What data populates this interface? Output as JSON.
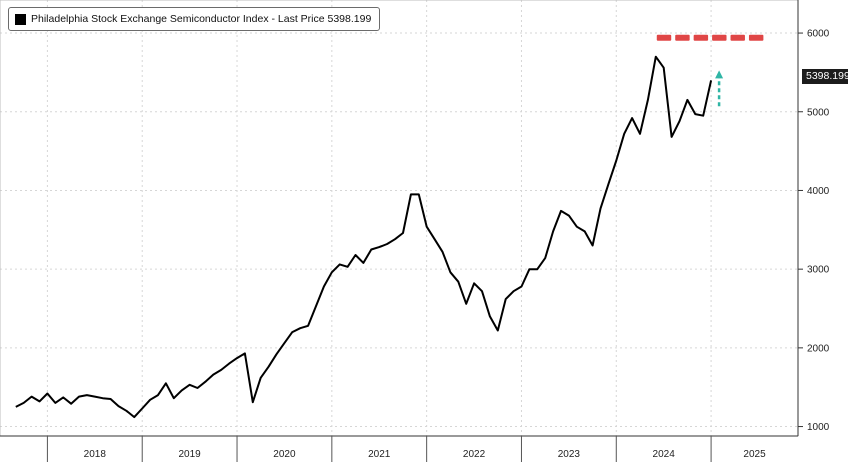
{
  "chart_data": {
    "type": "line",
    "title": "Philadelphia Stock Exchange Semiconductor Index - Last Price 5398.199",
    "xlabel": "",
    "ylabel": "",
    "x_ticks": [
      "2018",
      "2019",
      "2020",
      "2021",
      "2022",
      "2023",
      "2024",
      "2025"
    ],
    "y_ticks": [
      1000,
      2000,
      3000,
      4000,
      5000,
      6000
    ],
    "ylim": [
      880,
      6420
    ],
    "xlim": [
      "2017-07",
      "2025-12"
    ],
    "grid": true,
    "legend_position": "top-left",
    "last_price_label": "5398.199",
    "line_color": "#000000",
    "series": [
      {
        "x": [
          "2017-09",
          "2017-10",
          "2017-11",
          "2017-12",
          "2018-01",
          "2018-02",
          "2018-03",
          "2018-04",
          "2018-05",
          "2018-06",
          "2018-07",
          "2018-08",
          "2018-09",
          "2018-10",
          "2018-11",
          "2018-12",
          "2019-01",
          "2019-02",
          "2019-03",
          "2019-04",
          "2019-05",
          "2019-06",
          "2019-07",
          "2019-08",
          "2019-09",
          "2019-10",
          "2019-11",
          "2019-12",
          "2020-01",
          "2020-02",
          "2020-03",
          "2020-04",
          "2020-05",
          "2020-06",
          "2020-07",
          "2020-08",
          "2020-09",
          "2020-10",
          "2020-11",
          "2020-12",
          "2021-01",
          "2021-02",
          "2021-03",
          "2021-04",
          "2021-05",
          "2021-06",
          "2021-07",
          "2021-08",
          "2021-09",
          "2021-10",
          "2021-11",
          "2021-12",
          "2022-01",
          "2022-02",
          "2022-03",
          "2022-04",
          "2022-05",
          "2022-06",
          "2022-07",
          "2022-08",
          "2022-09",
          "2022-10",
          "2022-11",
          "2022-12",
          "2023-01",
          "2023-02",
          "2023-03",
          "2023-04",
          "2023-05",
          "2023-06",
          "2023-07",
          "2023-08",
          "2023-09",
          "2023-10",
          "2023-11",
          "2023-12",
          "2024-01",
          "2024-02",
          "2024-03",
          "2024-04",
          "2024-05",
          "2024-06",
          "2024-07",
          "2024-08",
          "2024-09",
          "2024-10",
          "2024-11",
          "2024-12",
          "2025-01"
        ],
        "values": [
          1250,
          1300,
          1380,
          1320,
          1420,
          1300,
          1370,
          1290,
          1380,
          1400,
          1380,
          1360,
          1350,
          1260,
          1200,
          1120,
          1230,
          1340,
          1400,
          1550,
          1360,
          1460,
          1530,
          1490,
          1570,
          1660,
          1720,
          1800,
          1870,
          1930,
          1310,
          1620,
          1760,
          1920,
          2060,
          2200,
          2250,
          2280,
          2530,
          2780,
          2960,
          3060,
          3030,
          3180,
          3080,
          3250,
          3280,
          3320,
          3380,
          3460,
          3950,
          3950,
          3540,
          3380,
          3220,
          2960,
          2840,
          2560,
          2820,
          2720,
          2400,
          2220,
          2620,
          2720,
          2780,
          3000,
          3000,
          3140,
          3480,
          3740,
          3680,
          3540,
          3480,
          3300,
          3770,
          4080,
          4380,
          4720,
          4920,
          4720,
          5150,
          5700,
          5560,
          4680,
          4880,
          5150,
          4970,
          4950,
          5398.199
        ]
      }
    ],
    "annotations": {
      "target_markers": {
        "color": "#e04646",
        "value": 5940,
        "count": 6
      },
      "arrow": {
        "color": "#2fb5a5",
        "direction": "up"
      }
    }
  }
}
